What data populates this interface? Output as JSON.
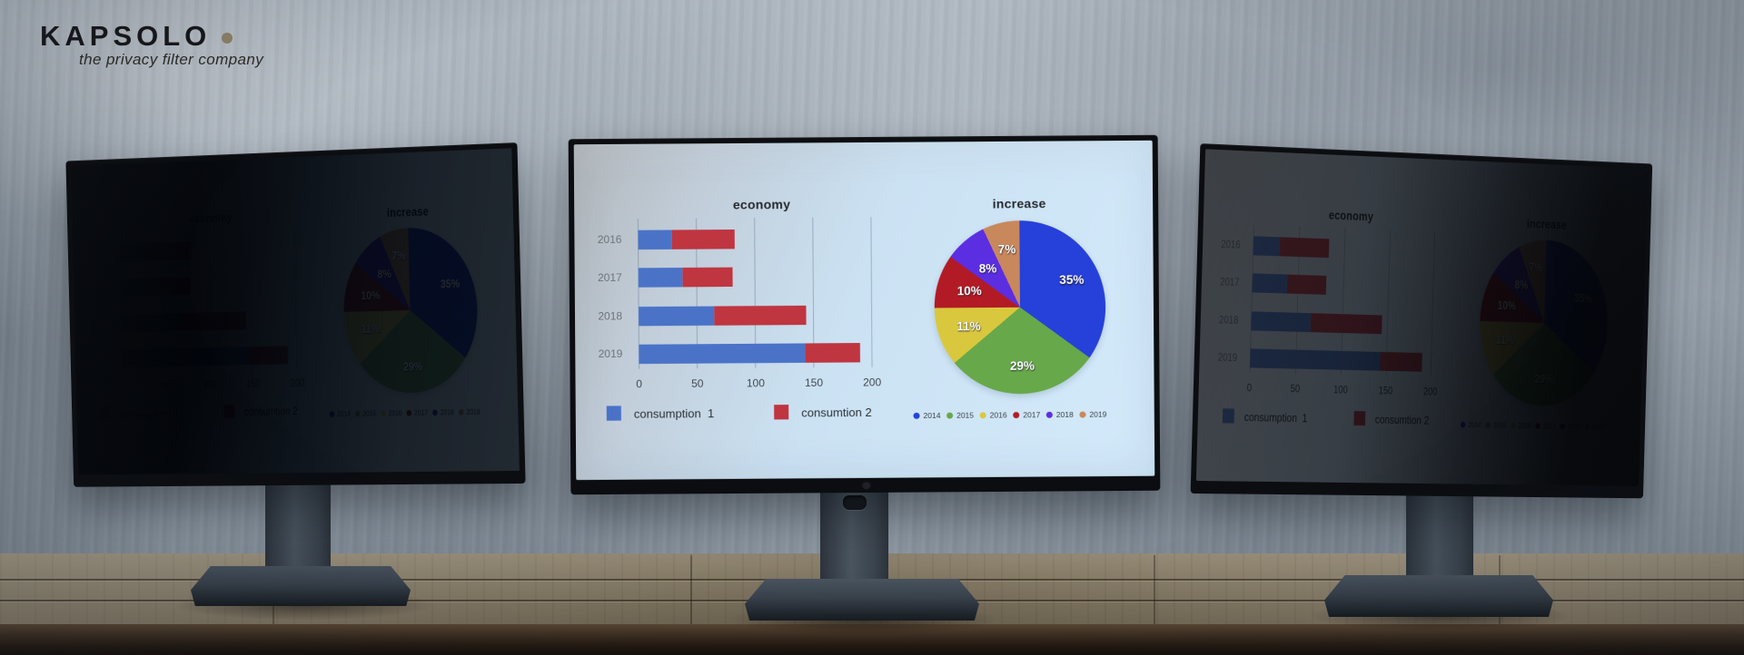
{
  "brand": {
    "name": "KAPSOLO",
    "tagline": "the privacy filter company",
    "dot_color": "#8f8468"
  },
  "scene": {
    "monitors": [
      {
        "position": "left",
        "privacy_filter_applied": true,
        "screen_state": "dark side view — only faint pie chart visible"
      },
      {
        "position": "center",
        "privacy_filter_applied": false,
        "screen_state": "fully visible"
      },
      {
        "position": "right",
        "privacy_filter_applied": true,
        "screen_state": "dimmed side view — bar chart faint, pie chart nearly black"
      }
    ]
  },
  "chart_data": [
    {
      "type": "bar",
      "orientation": "horizontal",
      "stacked": true,
      "title": "economy",
      "categories": [
        "2016",
        "2017",
        "2018",
        "2019"
      ],
      "series": [
        {
          "name": "consumption  1",
          "color": "#4a73c8",
          "values": [
            29,
            38,
            65,
            143
          ]
        },
        {
          "name": "consumtion 2",
          "color": "#bf3540",
          "values": [
            54,
            43,
            79,
            47
          ]
        }
      ],
      "xlim": [
        0,
        200
      ],
      "xticks": [
        0,
        50,
        100,
        150,
        200
      ],
      "grid": true,
      "legend_position": "bottom"
    },
    {
      "type": "pie",
      "title": "increase",
      "labels": [
        "2014",
        "2015",
        "2016",
        "2017",
        "2018",
        "2019"
      ],
      "values": [
        35,
        29,
        11,
        10,
        8,
        7
      ],
      "slice_labels": [
        "35%",
        "29%",
        "11%",
        "10%",
        "8%",
        "7%"
      ],
      "colors": [
        "#2640da",
        "#67a84a",
        "#d9c83e",
        "#b21b25",
        "#5b2ee2",
        "#c8885c"
      ],
      "start_angle_deg": 0,
      "direction": "clockwise",
      "legend_position": "bottom"
    }
  ]
}
